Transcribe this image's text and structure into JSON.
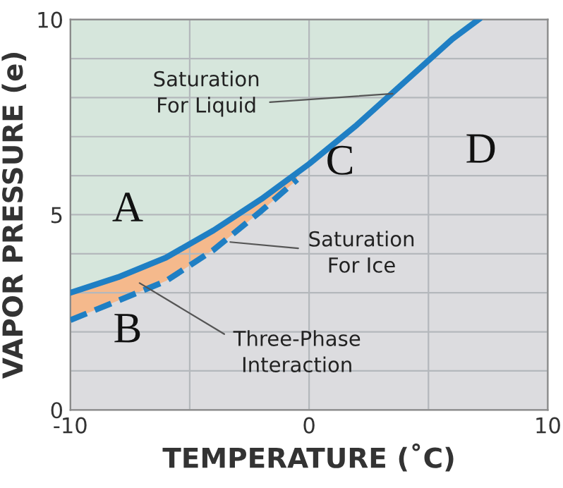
{
  "chart_data": {
    "type": "line",
    "xlabel": "TEMPERATURE (˚C)",
    "ylabel": "VAPOR PRESSURE (e)",
    "xlim": [
      -10,
      10
    ],
    "ylim": [
      0,
      10
    ],
    "xticks": [
      -10,
      {
        "value": -5,
        "label": null
      },
      0,
      {
        "value": 5,
        "label": null
      },
      10
    ],
    "yticks": [
      0,
      {
        "value": 1,
        "label": null
      },
      {
        "value": 2,
        "label": null
      },
      {
        "value": 3,
        "label": null
      },
      {
        "value": 4,
        "label": null
      },
      5,
      {
        "value": 6,
        "label": null
      },
      {
        "value": 7,
        "label": null
      },
      {
        "value": 8,
        "label": null
      },
      {
        "value": 9,
        "label": null
      },
      10
    ],
    "grid": true,
    "colors": [
      "#d6e6dc",
      "#f5b98c",
      "#dcdcdf"
    ],
    "series": [
      {
        "color": "#1f7fc4",
        "line_style": "solid",
        "x": [
          -10,
          -8,
          -6,
          -4,
          -2,
          0,
          2,
          4,
          6,
          7.1
        ],
        "values": [
          3.0,
          3.4,
          3.9,
          4.6,
          5.4,
          6.3,
          7.3,
          8.4,
          9.5,
          10
        ]
      },
      {
        "color": "#1f7fc4",
        "line_style": "dashed",
        "x": [
          -10,
          -8,
          -6,
          -4,
          -2,
          -0.5
        ],
        "values": [
          2.3,
          2.8,
          3.3,
          4.1,
          5.1,
          5.9
        ],
        "lower": [
          2.3,
          2.8,
          3.3,
          4.1,
          5.1,
          5.9
        ],
        "upper": [
          3.0,
          3.4,
          3.9,
          4.6,
          5.4,
          6.05
        ]
      }
    ],
    "annotations": [
      {
        "text": "Saturation\nFor Liquid",
        "x": 3.5,
        "y": 8.1
      },
      {
        "text": "Saturation\nFor Ice",
        "x": -3.3,
        "y": 4.3
      },
      {
        "text": "Three-Phase\nInteraction",
        "x": -7.1,
        "y": 3.25
      },
      "A",
      "B",
      "C",
      "D"
    ]
  }
}
